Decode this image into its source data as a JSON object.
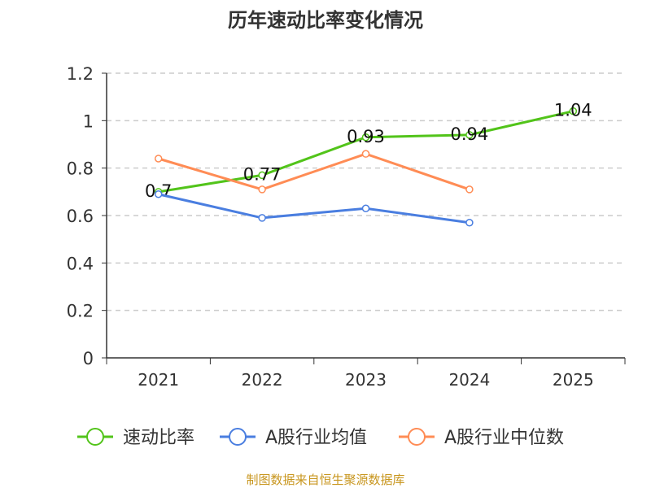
{
  "chart_data": {
    "type": "line",
    "title": "历年速动比率变化情况",
    "categories": [
      "2021",
      "2022",
      "2023",
      "2024",
      "2025"
    ],
    "ylim": [
      0,
      1.2
    ],
    "yticks": [
      "0",
      "0.2",
      "0.4",
      "0.6",
      "0.8",
      "1",
      "1.2"
    ],
    "grid": true,
    "legend_position": "bottom",
    "series": [
      {
        "name": "速动比率",
        "color": "#52c41a",
        "values": [
          0.7,
          0.77,
          0.93,
          0.94,
          1.04
        ],
        "labels": [
          "0.7",
          "0.77",
          "0.93",
          "0.94",
          "1.04"
        ]
      },
      {
        "name": "A股行业均值",
        "color": "#4a7ee0",
        "values": [
          0.69,
          0.59,
          0.63,
          0.57,
          null
        ]
      },
      {
        "name": "A股行业中位数",
        "color": "#ff8c55",
        "values": [
          0.84,
          0.71,
          0.86,
          0.71,
          null
        ]
      }
    ],
    "source": "制图数据来自恒生聚源数据库"
  }
}
